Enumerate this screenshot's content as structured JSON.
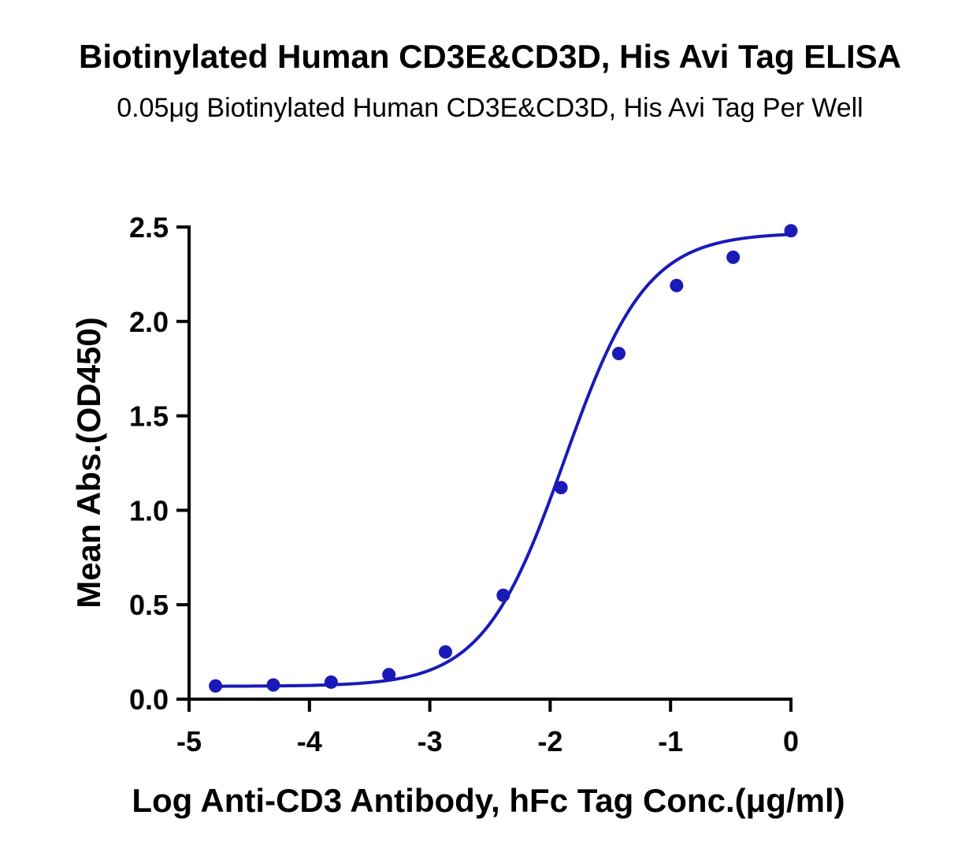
{
  "chart_data": {
    "type": "scatter",
    "title": "Biotinylated Human CD3E&CD3D, His Avi Tag ELISA",
    "subtitle": "0.05μg Biotinylated Human CD3E&CD3D, His Avi Tag Per Well",
    "xlabel": "Log Anti-CD3 Antibody, hFc Tag Conc.(μg/ml)",
    "ylabel": "Mean Abs.(OD450)",
    "xlim": [
      -5,
      0
    ],
    "ylim": [
      0,
      2.5
    ],
    "xticks": [
      -5,
      -4,
      -3,
      -2,
      -1,
      0
    ],
    "xtick_labels": [
      "-5",
      "-4",
      "-3",
      "-2",
      "-1",
      "0"
    ],
    "yticks": [
      0,
      0.5,
      1.0,
      1.5,
      2.0,
      2.5
    ],
    "ytick_labels": [
      "0.0",
      "0.5",
      "1.0",
      "1.5",
      "2.0",
      "2.5"
    ],
    "series": [
      {
        "color": "#1a1ab8",
        "x": [
          -4.78,
          -4.3,
          -3.82,
          -3.34,
          -2.87,
          -2.39,
          -1.91,
          -1.43,
          -0.95,
          -0.48,
          0.0
        ],
        "y": [
          0.07,
          0.075,
          0.09,
          0.13,
          0.25,
          0.55,
          1.12,
          1.83,
          2.19,
          2.34,
          2.48
        ]
      }
    ],
    "fit_curve": {
      "type": "4PL",
      "bottom": 0.068,
      "top": 2.47,
      "logEC50": -1.88,
      "hill": 1.28
    },
    "grid": false
  }
}
